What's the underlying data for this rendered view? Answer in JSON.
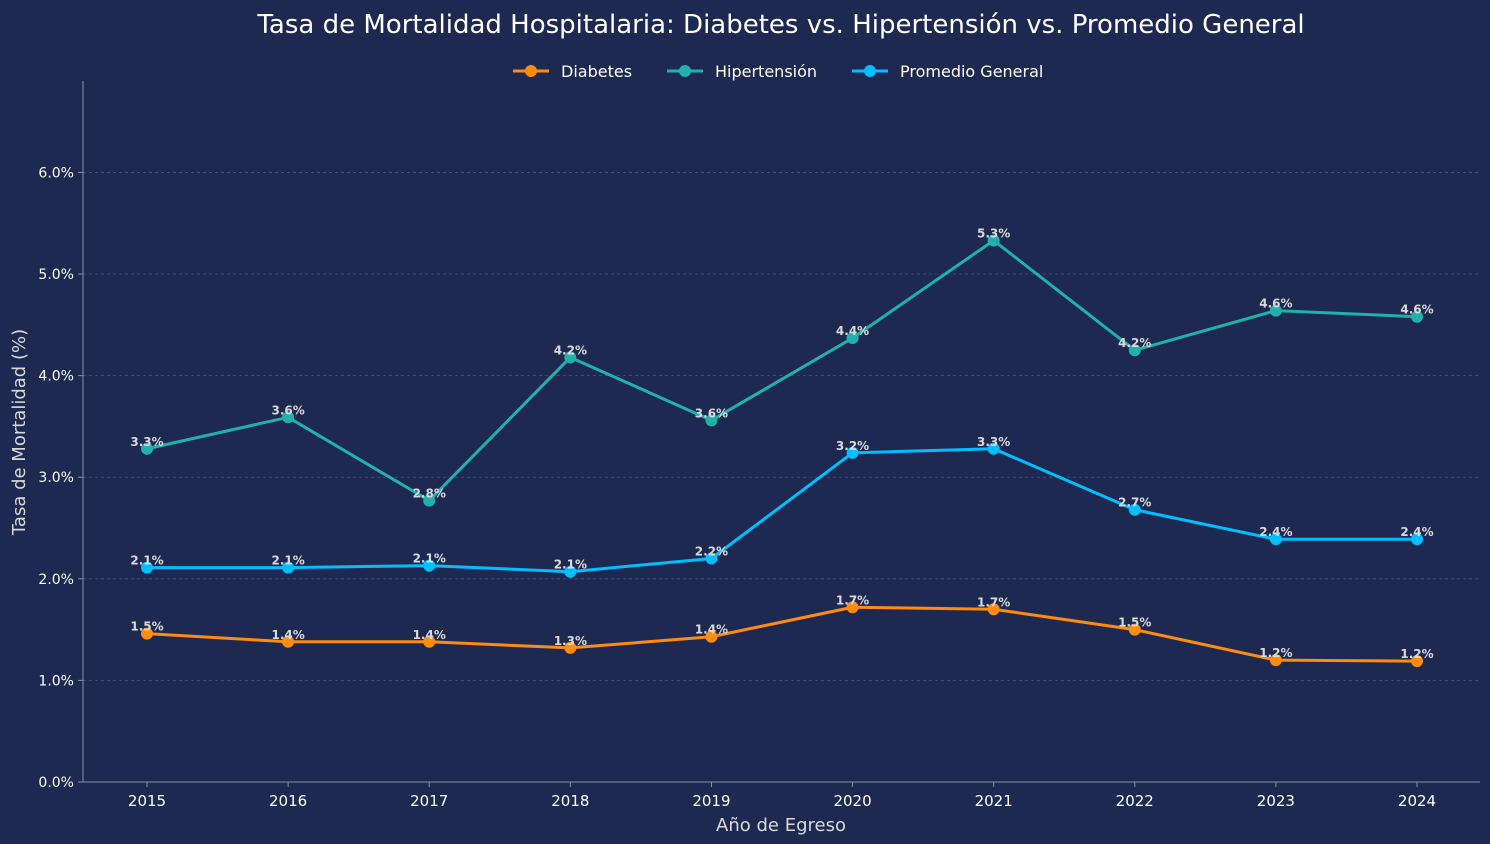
{
  "colors": {
    "background": "#1e2952",
    "text": "#ffffff",
    "label_text": "#d9d9d9",
    "axis": "#8a8fa3",
    "grid": "#4a5478"
  },
  "chart_data": {
    "type": "line",
    "title": "Tasa de Mortalidad Hospitalaria: Diabetes vs. Hipertensión vs. Promedio General",
    "xlabel": "Año de Egreso",
    "ylabel": "Tasa de Mortalidad (%)",
    "x": [
      2015,
      2016,
      2017,
      2018,
      2019,
      2020,
      2021,
      2022,
      2023,
      2024
    ],
    "x_tick_labels": [
      "2015",
      "2016",
      "2017",
      "2018",
      "2019",
      "2020",
      "2021",
      "2022",
      "2023",
      "2024"
    ],
    "ylim": [
      0,
      6.9
    ],
    "y_ticks": [
      0,
      1,
      2,
      3,
      4,
      5,
      6
    ],
    "y_tick_labels": [
      "0.0%",
      "1.0%",
      "2.0%",
      "3.0%",
      "4.0%",
      "5.0%",
      "6.0%"
    ],
    "grid": "horizontal-dashed",
    "legend_position": "top-center",
    "series": [
      {
        "name": "Diabetes",
        "color": "#ff8c0d",
        "values": [
          1.46,
          1.38,
          1.38,
          1.32,
          1.43,
          1.72,
          1.7,
          1.5,
          1.2,
          1.19
        ],
        "labels": [
          "1.5%",
          "1.4%",
          "1.4%",
          "1.3%",
          "1.4%",
          "1.7%",
          "1.7%",
          "1.5%",
          "1.2%",
          "1.2%"
        ]
      },
      {
        "name": "Hipertensión",
        "color": "#20b2aa",
        "values": [
          3.28,
          3.59,
          2.77,
          4.18,
          3.56,
          4.37,
          5.33,
          4.25,
          4.64,
          4.58
        ],
        "labels": [
          "3.3%",
          "3.6%",
          "2.8%",
          "4.2%",
          "3.6%",
          "4.4%",
          "5.3%",
          "4.2%",
          "4.6%",
          "4.6%"
        ]
      },
      {
        "name": "Promedio General",
        "color": "#00bfff",
        "values": [
          2.11,
          2.11,
          2.13,
          2.07,
          2.2,
          3.24,
          3.28,
          2.68,
          2.39,
          2.39
        ],
        "labels": [
          "2.1%",
          "2.1%",
          "2.1%",
          "2.1%",
          "2.2%",
          "3.2%",
          "3.3%",
          "2.7%",
          "2.4%",
          "2.4%"
        ]
      }
    ]
  }
}
